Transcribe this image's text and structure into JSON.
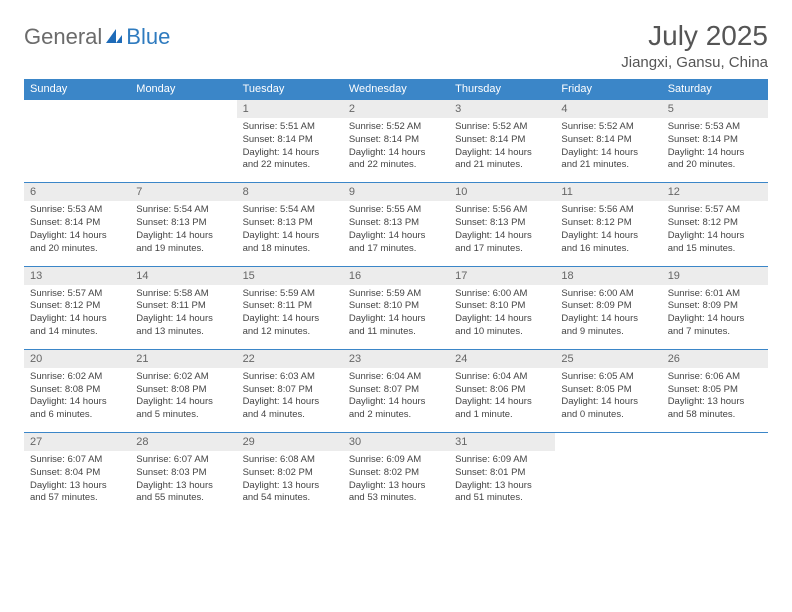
{
  "logo": {
    "word1": "General",
    "word2": "Blue"
  },
  "title": "July 2025",
  "location": "Jiangxi, Gansu, China",
  "day_names": [
    "Sunday",
    "Monday",
    "Tuesday",
    "Wednesday",
    "Thursday",
    "Friday",
    "Saturday"
  ],
  "colors": {
    "header_bg": "#3b86c8",
    "header_fg": "#ffffff",
    "daynum_bg": "#ececec",
    "row_border": "#3b86c8",
    "text": "#444444",
    "logo_gray": "#6b6b6b",
    "logo_blue": "#2f7bbf"
  },
  "leading_blanks": 2,
  "days": [
    {
      "n": 1,
      "sr": "5:51 AM",
      "ss": "8:14 PM",
      "dl": "14 hours and 22 minutes."
    },
    {
      "n": 2,
      "sr": "5:52 AM",
      "ss": "8:14 PM",
      "dl": "14 hours and 22 minutes."
    },
    {
      "n": 3,
      "sr": "5:52 AM",
      "ss": "8:14 PM",
      "dl": "14 hours and 21 minutes."
    },
    {
      "n": 4,
      "sr": "5:52 AM",
      "ss": "8:14 PM",
      "dl": "14 hours and 21 minutes."
    },
    {
      "n": 5,
      "sr": "5:53 AM",
      "ss": "8:14 PM",
      "dl": "14 hours and 20 minutes."
    },
    {
      "n": 6,
      "sr": "5:53 AM",
      "ss": "8:14 PM",
      "dl": "14 hours and 20 minutes."
    },
    {
      "n": 7,
      "sr": "5:54 AM",
      "ss": "8:13 PM",
      "dl": "14 hours and 19 minutes."
    },
    {
      "n": 8,
      "sr": "5:54 AM",
      "ss": "8:13 PM",
      "dl": "14 hours and 18 minutes."
    },
    {
      "n": 9,
      "sr": "5:55 AM",
      "ss": "8:13 PM",
      "dl": "14 hours and 17 minutes."
    },
    {
      "n": 10,
      "sr": "5:56 AM",
      "ss": "8:13 PM",
      "dl": "14 hours and 17 minutes."
    },
    {
      "n": 11,
      "sr": "5:56 AM",
      "ss": "8:12 PM",
      "dl": "14 hours and 16 minutes."
    },
    {
      "n": 12,
      "sr": "5:57 AM",
      "ss": "8:12 PM",
      "dl": "14 hours and 15 minutes."
    },
    {
      "n": 13,
      "sr": "5:57 AM",
      "ss": "8:12 PM",
      "dl": "14 hours and 14 minutes."
    },
    {
      "n": 14,
      "sr": "5:58 AM",
      "ss": "8:11 PM",
      "dl": "14 hours and 13 minutes."
    },
    {
      "n": 15,
      "sr": "5:59 AM",
      "ss": "8:11 PM",
      "dl": "14 hours and 12 minutes."
    },
    {
      "n": 16,
      "sr": "5:59 AM",
      "ss": "8:10 PM",
      "dl": "14 hours and 11 minutes."
    },
    {
      "n": 17,
      "sr": "6:00 AM",
      "ss": "8:10 PM",
      "dl": "14 hours and 10 minutes."
    },
    {
      "n": 18,
      "sr": "6:00 AM",
      "ss": "8:09 PM",
      "dl": "14 hours and 9 minutes."
    },
    {
      "n": 19,
      "sr": "6:01 AM",
      "ss": "8:09 PM",
      "dl": "14 hours and 7 minutes."
    },
    {
      "n": 20,
      "sr": "6:02 AM",
      "ss": "8:08 PM",
      "dl": "14 hours and 6 minutes."
    },
    {
      "n": 21,
      "sr": "6:02 AM",
      "ss": "8:08 PM",
      "dl": "14 hours and 5 minutes."
    },
    {
      "n": 22,
      "sr": "6:03 AM",
      "ss": "8:07 PM",
      "dl": "14 hours and 4 minutes."
    },
    {
      "n": 23,
      "sr": "6:04 AM",
      "ss": "8:07 PM",
      "dl": "14 hours and 2 minutes."
    },
    {
      "n": 24,
      "sr": "6:04 AM",
      "ss": "8:06 PM",
      "dl": "14 hours and 1 minute."
    },
    {
      "n": 25,
      "sr": "6:05 AM",
      "ss": "8:05 PM",
      "dl": "14 hours and 0 minutes."
    },
    {
      "n": 26,
      "sr": "6:06 AM",
      "ss": "8:05 PM",
      "dl": "13 hours and 58 minutes."
    },
    {
      "n": 27,
      "sr": "6:07 AM",
      "ss": "8:04 PM",
      "dl": "13 hours and 57 minutes."
    },
    {
      "n": 28,
      "sr": "6:07 AM",
      "ss": "8:03 PM",
      "dl": "13 hours and 55 minutes."
    },
    {
      "n": 29,
      "sr": "6:08 AM",
      "ss": "8:02 PM",
      "dl": "13 hours and 54 minutes."
    },
    {
      "n": 30,
      "sr": "6:09 AM",
      "ss": "8:02 PM",
      "dl": "13 hours and 53 minutes."
    },
    {
      "n": 31,
      "sr": "6:09 AM",
      "ss": "8:01 PM",
      "dl": "13 hours and 51 minutes."
    }
  ],
  "labels": {
    "sunrise": "Sunrise:",
    "sunset": "Sunset:",
    "daylight": "Daylight:"
  }
}
